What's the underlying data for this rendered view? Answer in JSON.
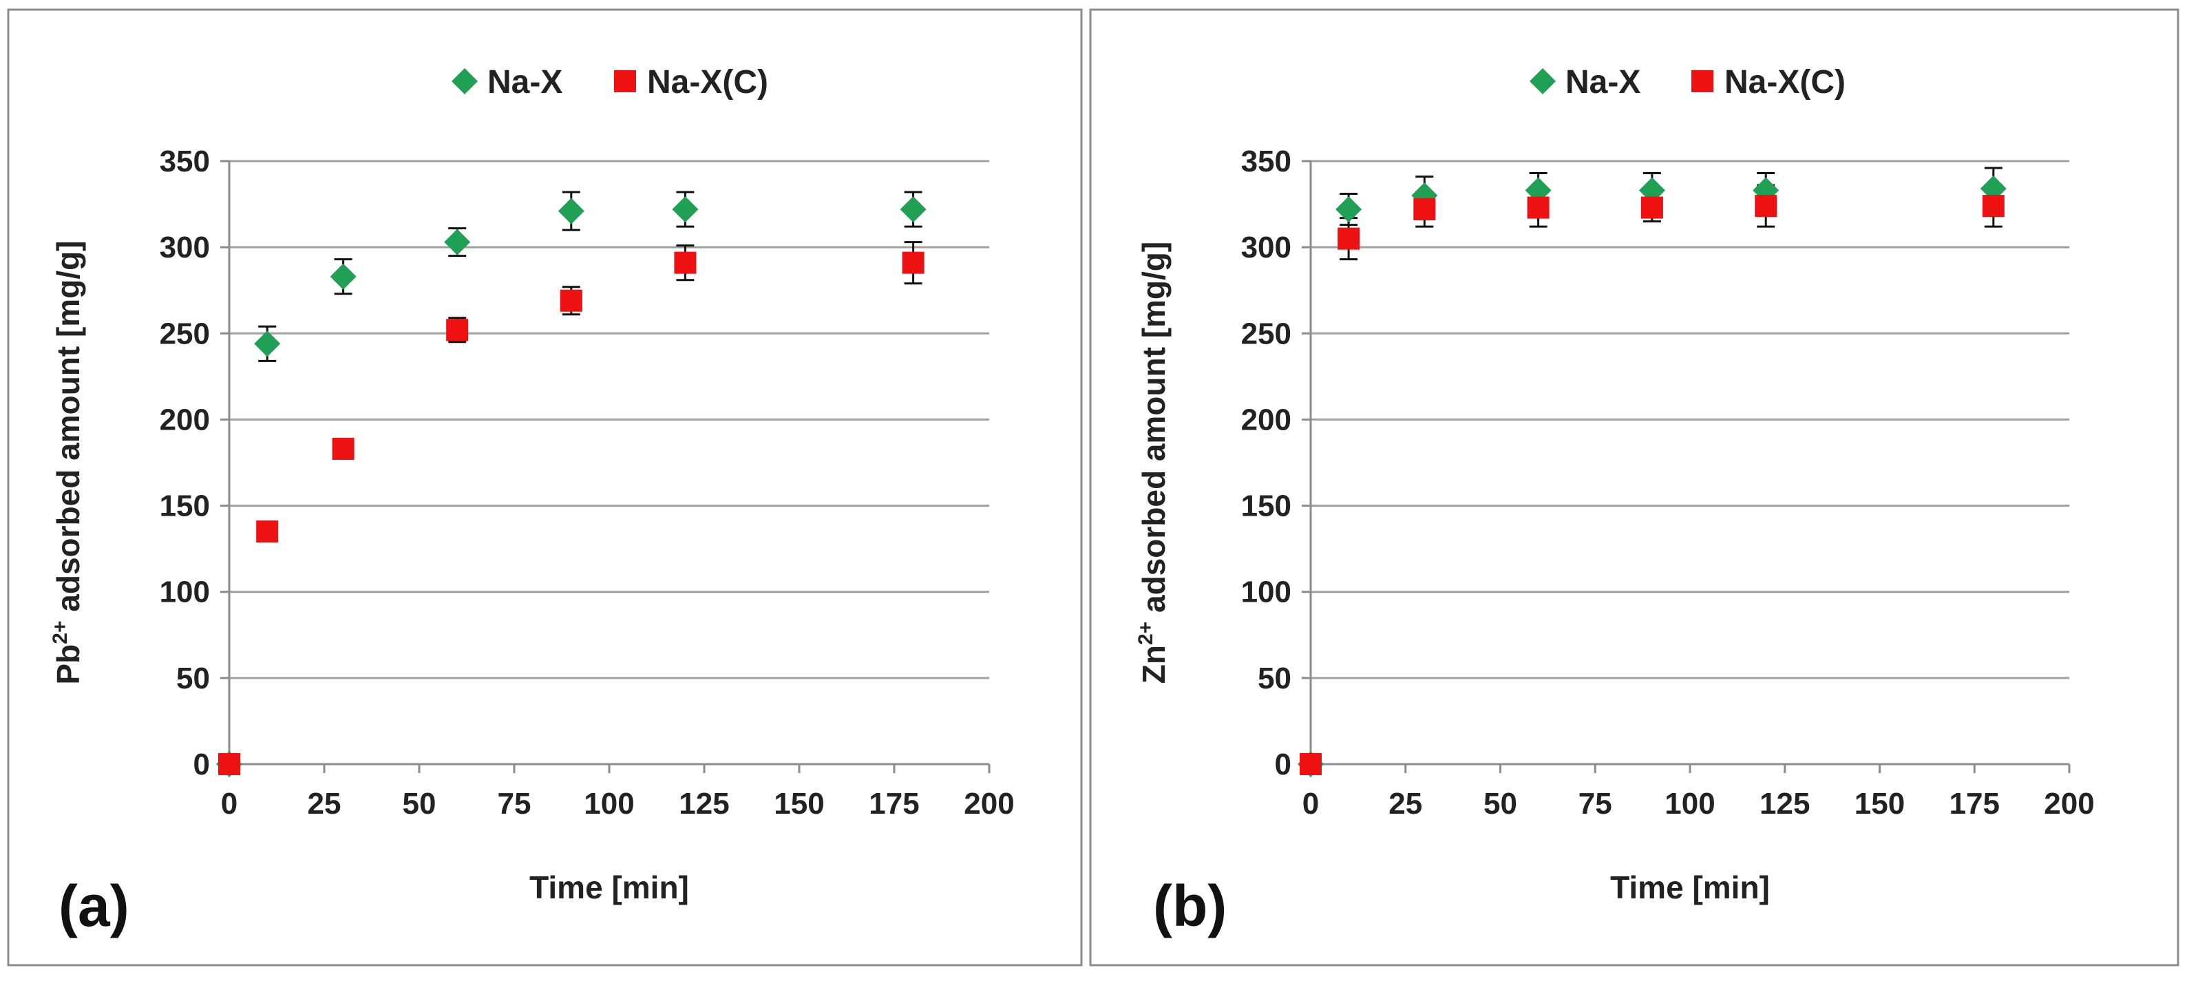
{
  "chart_data": [
    {
      "type": "scatter",
      "panel_label": "(a)",
      "xlabel": "Time [min]",
      "ylabel": {
        "base": "Pb",
        "sup": "2+",
        "rest": " adsorbed amount [mg/g]"
      },
      "xlim": [
        0,
        200
      ],
      "ylim": [
        0,
        350
      ],
      "xticks": [
        0,
        25,
        50,
        75,
        100,
        125,
        150,
        175,
        200
      ],
      "yticks": [
        0,
        50,
        100,
        150,
        200,
        250,
        300,
        350
      ],
      "grid": "horizontal",
      "legend_position": "top-center",
      "series": [
        {
          "name": "Na-X",
          "marker": "diamond",
          "color": "#1fa055",
          "points": [
            {
              "x": 0,
              "y": 0,
              "err": 0
            },
            {
              "x": 10,
              "y": 244,
              "err": 10
            },
            {
              "x": 30,
              "y": 283,
              "err": 10
            },
            {
              "x": 60,
              "y": 303,
              "err": 8
            },
            {
              "x": 90,
              "y": 321,
              "err": 11
            },
            {
              "x": 120,
              "y": 322,
              "err": 10
            },
            {
              "x": 180,
              "y": 322,
              "err": 10
            }
          ]
        },
        {
          "name": "Na-X(C)",
          "marker": "square",
          "color": "#ee1111",
          "points": [
            {
              "x": 0,
              "y": 0,
              "err": 0
            },
            {
              "x": 10,
              "y": 135,
              "err": 5
            },
            {
              "x": 30,
              "y": 183,
              "err": 5
            },
            {
              "x": 60,
              "y": 252,
              "err": 7
            },
            {
              "x": 90,
              "y": 269,
              "err": 8
            },
            {
              "x": 120,
              "y": 291,
              "err": 10
            },
            {
              "x": 180,
              "y": 291,
              "err": 12
            }
          ]
        }
      ]
    },
    {
      "type": "scatter",
      "panel_label": "(b)",
      "xlabel": "Time [min]",
      "ylabel": {
        "base": "Zn",
        "sup": "2+",
        "rest": " adsorbed amount [mg/g]"
      },
      "xlim": [
        0,
        200
      ],
      "ylim": [
        0,
        350
      ],
      "xticks": [
        0,
        25,
        50,
        75,
        100,
        125,
        150,
        175,
        200
      ],
      "yticks": [
        0,
        50,
        100,
        150,
        200,
        250,
        300,
        350
      ],
      "grid": "horizontal",
      "legend_position": "top-center",
      "series": [
        {
          "name": "Na-X",
          "marker": "diamond",
          "color": "#1fa055",
          "points": [
            {
              "x": 0,
              "y": 0,
              "err": 0
            },
            {
              "x": 10,
              "y": 322,
              "err": 9
            },
            {
              "x": 30,
              "y": 330,
              "err": 11
            },
            {
              "x": 60,
              "y": 333,
              "err": 10
            },
            {
              "x": 90,
              "y": 333,
              "err": 10
            },
            {
              "x": 120,
              "y": 333,
              "err": 10
            },
            {
              "x": 180,
              "y": 334,
              "err": 12
            }
          ]
        },
        {
          "name": "Na-X(C)",
          "marker": "square",
          "color": "#ee1111",
          "points": [
            {
              "x": 0,
              "y": 0,
              "err": 0
            },
            {
              "x": 10,
              "y": 305,
              "err": 12
            },
            {
              "x": 30,
              "y": 322,
              "err": 10
            },
            {
              "x": 60,
              "y": 323,
              "err": 11
            },
            {
              "x": 90,
              "y": 323,
              "err": 8
            },
            {
              "x": 120,
              "y": 324,
              "err": 12
            },
            {
              "x": 180,
              "y": 324,
              "err": 12
            }
          ]
        }
      ]
    }
  ]
}
